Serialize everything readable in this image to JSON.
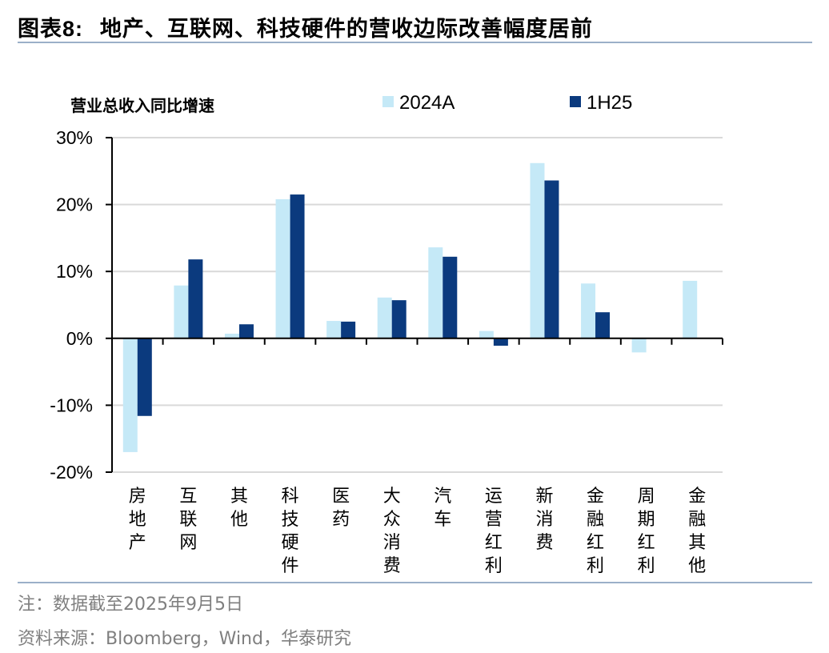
{
  "figure": {
    "title_prefix": "图表8:",
    "title_text": "地产、互联网、科技硬件的营收边际改善幅度居前",
    "note": "注：数据截至2025年9月5日",
    "source": "资料来源：Bloomberg，Wind，华泰研究"
  },
  "colors": {
    "series_2024A": "#c5e9f7",
    "series_1H25": "#0b3a7e",
    "axis": "#000000",
    "grid": "#d9d9d9",
    "rule": "#9bb0c8"
  },
  "chart_data": {
    "type": "bar",
    "title": "图表8: 地产、互联网、科技硬件的营收边际改善幅度居前",
    "ylabel": "营业总收入同比增速",
    "xlabel": "",
    "ylim": [
      -20,
      30
    ],
    "yticks": [
      30,
      20,
      10,
      0,
      -10,
      -20
    ],
    "ytick_labels": [
      "30%",
      "20%",
      "10%",
      "0%",
      "-10%",
      "-20%"
    ],
    "grid": true,
    "legend_position": "top",
    "categories": [
      "房地产",
      "互联网",
      "其他",
      "科技硬件",
      "医药",
      "大众消费",
      "汽车",
      "运营红利",
      "新消费",
      "金融红利",
      "周期红利",
      "金融其他"
    ],
    "series": [
      {
        "name": "2024A",
        "values": [
          -17.0,
          7.9,
          0.7,
          20.8,
          2.6,
          6.1,
          13.6,
          1.1,
          26.2,
          8.2,
          -2.1,
          8.6
        ]
      },
      {
        "name": "1H25",
        "values": [
          -11.6,
          11.8,
          2.1,
          21.5,
          2.5,
          5.7,
          12.2,
          -1.1,
          23.6,
          3.9,
          null,
          null
        ]
      }
    ]
  }
}
